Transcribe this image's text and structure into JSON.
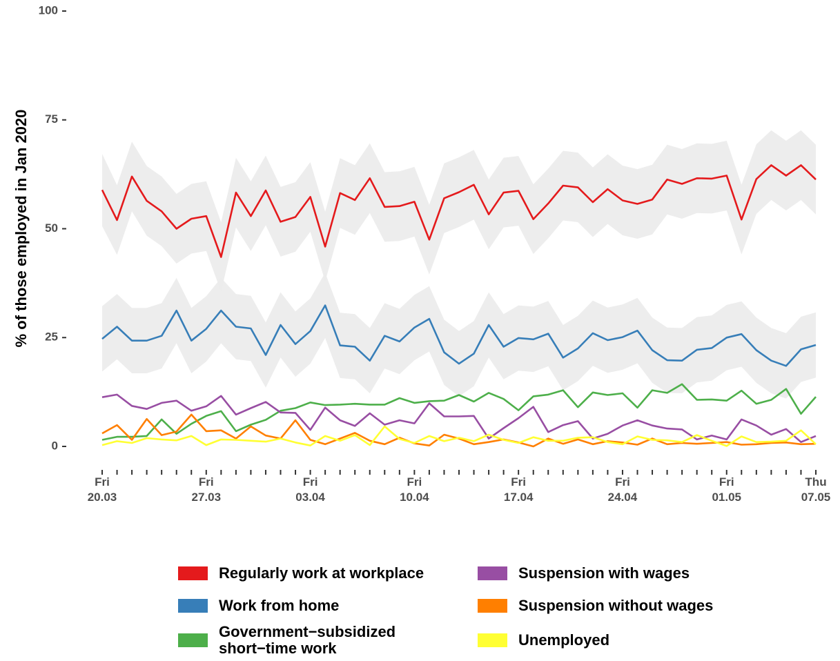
{
  "chart_data": {
    "type": "line",
    "y_label": "% of those employed in Jan 2020",
    "categories": [
      "Fri\n20.03",
      null,
      null,
      null,
      null,
      null,
      null,
      "Fri\n27.03",
      null,
      null,
      null,
      null,
      null,
      null,
      "Fri\n03.04",
      null,
      null,
      null,
      null,
      null,
      null,
      "Fri\n10.04",
      null,
      null,
      null,
      null,
      null,
      null,
      "Fri\n17.04",
      null,
      null,
      null,
      null,
      null,
      null,
      "Fri\n24.04",
      null,
      null,
      null,
      null,
      null,
      null,
      "Fri\n01.05",
      null,
      null,
      null,
      null,
      null,
      "Thu\n07.05"
    ],
    "ylim": [
      0,
      100
    ],
    "yticks": [
      0,
      25,
      50,
      75,
      100
    ],
    "grid": false,
    "series": [
      {
        "name": "Regularly work at workplace",
        "color": "#e41a1c",
        "values": [
          58.9,
          52,
          62,
          56.4,
          54,
          50,
          52.3,
          52.9,
          43.5,
          58.3,
          52.9,
          58.8,
          51.6,
          52.7,
          57.3,
          45.9,
          58.2,
          56.6,
          61.6,
          55,
          55.2,
          56.2,
          47.5,
          57,
          58.4,
          60.1,
          53.3,
          58.3,
          58.7,
          52.2,
          55.8,
          59.9,
          59.5,
          56.1,
          59.1,
          56.5,
          55.7,
          56.7,
          61.3,
          60.3,
          61.6,
          61.5,
          62.2,
          52.1,
          61.4,
          64.6,
          62.2,
          64.6,
          61.3
        ],
        "lower": [
          50.6,
          44,
          54,
          48.4,
          46,
          42,
          44.3,
          44.9,
          35.5,
          50.3,
          44.9,
          50.8,
          43.6,
          44.7,
          49.3,
          37.9,
          50.2,
          48.6,
          53.6,
          47,
          47.2,
          48.2,
          39.5,
          49,
          50.4,
          52.1,
          45.3,
          50.3,
          50.7,
          44.2,
          47.8,
          51.9,
          51.5,
          48.1,
          51.1,
          48.5,
          47.7,
          48.7,
          53.3,
          52.3,
          53.6,
          53.5,
          54.2,
          44.1,
          53.4,
          56.6,
          54.2,
          56.6,
          53.3
        ],
        "upper": [
          67.2,
          60,
          70,
          64.4,
          62,
          58,
          60.3,
          60.9,
          51.5,
          66.3,
          60.9,
          66.8,
          59.6,
          60.7,
          65.3,
          53.9,
          66.2,
          64.6,
          69.6,
          63,
          63.2,
          64.2,
          55.5,
          65,
          66.4,
          68.1,
          61.3,
          66.3,
          66.7,
          60.2,
          63.8,
          67.9,
          67.5,
          64.1,
          67.1,
          64.5,
          63.7,
          64.7,
          69.3,
          68.3,
          69.6,
          69.5,
          70.2,
          60.1,
          69.4,
          72.6,
          70.2,
          72.6,
          69.3
        ]
      },
      {
        "name": "Work from home",
        "color": "#377eb8",
        "values": [
          24.7,
          27.5,
          24.3,
          24.3,
          25.4,
          31.2,
          24.3,
          27,
          31.2,
          27.5,
          27.1,
          21,
          27.9,
          23.5,
          26.5,
          32.4,
          23.2,
          22.9,
          19.7,
          25.4,
          24.1,
          27.3,
          29.3,
          21.6,
          19,
          21.3,
          27.9,
          22.9,
          24.9,
          24.6,
          25.9,
          20.4,
          22.5,
          26,
          24.4,
          25.1,
          26.6,
          22.1,
          19.8,
          19.7,
          22.2,
          22.6,
          25,
          25.8,
          22.1,
          19.7,
          18.5,
          22.3,
          23.3
        ],
        "lower": [
          17.2,
          20,
          16.8,
          16.8,
          17.9,
          23.7,
          16.8,
          19.5,
          23.7,
          20,
          19.6,
          13.5,
          20.4,
          16,
          19,
          24.9,
          15.7,
          15.4,
          12.2,
          17.9,
          16.6,
          19.8,
          21.8,
          14.1,
          11.5,
          13.8,
          20.4,
          15.4,
          17.4,
          17.1,
          18.4,
          12.9,
          15,
          18.5,
          16.9,
          17.6,
          19.1,
          14.6,
          12.3,
          12.2,
          14.7,
          15.1,
          17.5,
          18.3,
          14.6,
          12.2,
          11,
          14.8,
          15.8
        ],
        "upper": [
          32.2,
          35,
          31.8,
          31.8,
          32.9,
          38.7,
          31.8,
          34.5,
          38.7,
          35,
          34.6,
          28.5,
          35.4,
          31,
          34,
          39.9,
          30.7,
          30.4,
          27.2,
          32.9,
          31.6,
          34.8,
          36.8,
          29.1,
          26.5,
          28.8,
          35.4,
          30.4,
          32.4,
          32.1,
          33.4,
          27.9,
          30,
          33.5,
          31.9,
          32.6,
          34.1,
          29.6,
          27.3,
          27.2,
          29.7,
          30.1,
          32.5,
          33.3,
          29.6,
          27.2,
          26,
          29.8,
          30.8
        ]
      },
      {
        "name": "Government−subsidized\nshort−time work",
        "color": "#4daf4a",
        "values": [
          1.5,
          2.2,
          2.2,
          2.4,
          6.2,
          2.9,
          5.2,
          7,
          8.1,
          3.5,
          5,
          6.1,
          8.2,
          8.8,
          10.1,
          9.5,
          9.6,
          9.8,
          9.6,
          9.6,
          11.1,
          10,
          10.4,
          10.5,
          11.8,
          10.3,
          12.3,
          10.9,
          8.3,
          11.5,
          11.9,
          12.9,
          9,
          12.4,
          11.8,
          12.2,
          8.9,
          12.9,
          12.3,
          14.3,
          10.7,
          10.8,
          10.5,
          12.8,
          9.8,
          10.7,
          13.2,
          7.5,
          11.4
        ]
      },
      {
        "name": "Suspension with wages",
        "color": "#984ea3",
        "values": [
          11.3,
          11.9,
          9.3,
          8.6,
          10,
          10.5,
          8.2,
          9.2,
          11.6,
          7.3,
          8.8,
          10.2,
          7.8,
          7.7,
          3.8,
          8.9,
          6,
          4.7,
          7.6,
          5,
          6,
          5.3,
          9.9,
          6.9,
          6.9,
          7,
          1.8,
          4.2,
          6.5,
          9.1,
          3.3,
          4.9,
          5.8,
          1.8,
          2.9,
          4.8,
          6,
          4.8,
          4.1,
          3.9,
          1.6,
          2.5,
          1.6,
          6.2,
          4.8,
          2.7,
          4,
          1,
          2.4
        ]
      },
      {
        "name": "Suspension without wages",
        "color": "#ff7f00",
        "values": [
          3,
          4.9,
          1.5,
          6.3,
          2.6,
          3.4,
          7.3,
          3.5,
          3.7,
          1.8,
          4.6,
          2.5,
          1.8,
          6,
          1.5,
          0.5,
          1.8,
          3.1,
          1.3,
          0.5,
          2,
          0.7,
          0.2,
          2.7,
          1.8,
          0.5,
          1,
          1.6,
          0.9,
          0,
          1.8,
          0.6,
          1.6,
          0.5,
          1.2,
          0.9,
          0.4,
          1.8,
          0.5,
          0.8,
          0.6,
          0.8,
          1,
          0.4,
          0.5,
          0.8,
          0.9,
          0.5,
          0.6
        ]
      },
      {
        "name": "Unemployed",
        "color": "#ffff33",
        "values": [
          0.3,
          1.2,
          0.8,
          1.9,
          1.6,
          1.4,
          2.4,
          0.3,
          1.6,
          1.5,
          1.3,
          1.1,
          1.8,
          0.9,
          0.2,
          2.4,
          1.3,
          2.6,
          0.3,
          4.6,
          1.7,
          0.8,
          2.4,
          1.2,
          2,
          1.2,
          2.7,
          1.5,
          0.8,
          2.1,
          1.3,
          1.3,
          2,
          2.1,
          1,
          0.5,
          2.3,
          1.5,
          1.4,
          1,
          2.6,
          1.3,
          0.1,
          2.3,
          1,
          1.1,
          1.3,
          3.7,
          0.5
        ]
      }
    ]
  }
}
